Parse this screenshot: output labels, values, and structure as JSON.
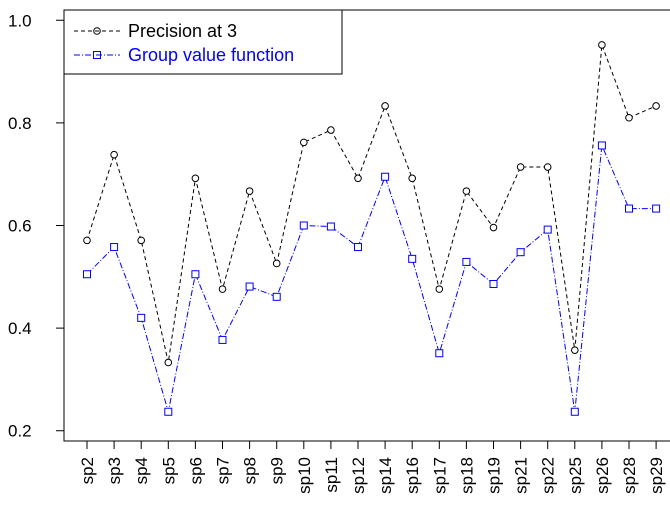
{
  "chart_data": {
    "type": "line",
    "categories": [
      "sp2",
      "sp3",
      "sp4",
      "sp5",
      "sp6",
      "sp7",
      "sp8",
      "sp9",
      "sp10",
      "sp11",
      "sp12",
      "sp14",
      "sp16",
      "sp17",
      "sp18",
      "sp19",
      "sp21",
      "sp22",
      "sp25",
      "sp26",
      "sp28",
      "sp29"
    ],
    "series": [
      {
        "name": "Precision at 3",
        "color": "#000000",
        "marker": "circle",
        "line_style": "dashed",
        "values": [
          0.571,
          0.738,
          0.571,
          0.333,
          0.692,
          0.476,
          0.667,
          0.526,
          0.762,
          0.786,
          0.692,
          0.833,
          0.692,
          0.476,
          0.667,
          0.596,
          0.714,
          0.714,
          0.357,
          0.952,
          0.81,
          0.833
        ]
      },
      {
        "name": "Group value function",
        "color": "#0000ff",
        "marker": "square",
        "line_style": "dash-dot",
        "values": [
          0.505,
          0.558,
          0.42,
          0.237,
          0.505,
          0.377,
          0.481,
          0.461,
          0.6,
          0.598,
          0.558,
          0.695,
          0.535,
          0.351,
          0.529,
          0.486,
          0.548,
          0.592,
          0.237,
          0.756,
          0.633,
          0.633
        ]
      }
    ],
    "y_ticks": [
      "0.2",
      "0.4",
      "0.6",
      "0.8",
      "1.0"
    ],
    "ylim": [
      0.18,
      1.02
    ],
    "grid": false,
    "legend_position": "top-left",
    "title": "",
    "xlabel": "",
    "ylabel": ""
  }
}
